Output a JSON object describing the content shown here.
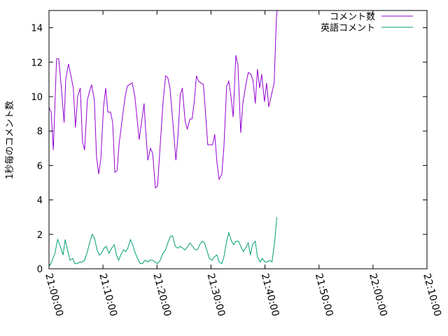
{
  "chart_data": {
    "type": "line",
    "title": "",
    "xlabel": "",
    "ylabel": "1秒毎のコメント数",
    "xlim_minutes": [
      0,
      70
    ],
    "ylim": [
      0,
      15
    ],
    "x_ticks": [
      {
        "minute": 0,
        "label": "21:00:00"
      },
      {
        "minute": 10,
        "label": "21:10:00"
      },
      {
        "minute": 20,
        "label": "21:20:00"
      },
      {
        "minute": 30,
        "label": "21:30:00"
      },
      {
        "minute": 40,
        "label": "21:40:00"
      },
      {
        "minute": 50,
        "label": "21:50:00"
      },
      {
        "minute": 60,
        "label": "22:00:00"
      },
      {
        "minute": 70,
        "label": "22:10:00"
      }
    ],
    "y_ticks": [
      {
        "value": 0,
        "label": "0"
      },
      {
        "value": 2,
        "label": "2"
      },
      {
        "value": 4,
        "label": "4"
      },
      {
        "value": 6,
        "label": "6"
      },
      {
        "value": 8,
        "label": "8"
      },
      {
        "value": 10,
        "label": "10"
      },
      {
        "value": 12,
        "label": "12"
      },
      {
        "value": 14,
        "label": "14"
      }
    ],
    "grid": false,
    "legend_position": "top-right",
    "series": [
      {
        "name": "コメント数",
        "color": "#9400d3",
        "points": [
          [
            -1.1,
            6.4
          ],
          [
            -0.8,
            10.3
          ],
          [
            -0.2,
            9.5
          ],
          [
            0.4,
            9.1
          ],
          [
            0.8,
            6.9
          ],
          [
            1.4,
            12.2
          ],
          [
            1.8,
            12.2
          ],
          [
            2.3,
            10.5
          ],
          [
            2.8,
            8.5
          ],
          [
            3.1,
            11
          ],
          [
            3.6,
            11.9
          ],
          [
            4,
            11.3
          ],
          [
            4.5,
            10.5
          ],
          [
            4.9,
            8.2
          ],
          [
            5.3,
            10
          ],
          [
            5.8,
            10.5
          ],
          [
            6.2,
            7.4
          ],
          [
            6.6,
            6.9
          ],
          [
            7.1,
            9.8
          ],
          [
            7.5,
            10.3
          ],
          [
            7.9,
            10.7
          ],
          [
            8.4,
            9.8
          ],
          [
            8.8,
            6.5
          ],
          [
            9.2,
            5.5
          ],
          [
            9.6,
            6.4
          ],
          [
            10.1,
            9.4
          ],
          [
            10.5,
            10.5
          ],
          [
            10.9,
            9.1
          ],
          [
            11.4,
            9.1
          ],
          [
            11.8,
            8.5
          ],
          [
            12.2,
            5.6
          ],
          [
            12.6,
            5.7
          ],
          [
            13,
            7.3
          ],
          [
            13.6,
            8.8
          ],
          [
            14.1,
            10
          ],
          [
            14.5,
            10.6
          ],
          [
            15.4,
            10.8
          ],
          [
            15.9,
            10
          ],
          [
            16.7,
            7.5
          ],
          [
            17.1,
            8.4
          ],
          [
            17.6,
            9.6
          ],
          [
            17.9,
            8
          ],
          [
            18.3,
            6.3
          ],
          [
            18.8,
            7
          ],
          [
            19.2,
            6.7
          ],
          [
            19.7,
            4.7
          ],
          [
            20.1,
            4.8
          ],
          [
            20.6,
            7.2
          ],
          [
            21.1,
            9.6
          ],
          [
            21.6,
            11.2
          ],
          [
            22,
            11.1
          ],
          [
            22.4,
            10.5
          ],
          [
            23,
            8.3
          ],
          [
            23.5,
            6.3
          ],
          [
            23.9,
            7.8
          ],
          [
            24.3,
            10.1
          ],
          [
            24.7,
            10.5
          ],
          [
            25.2,
            8.6
          ],
          [
            25.6,
            8.1
          ],
          [
            26.1,
            8.7
          ],
          [
            26.5,
            8.7
          ],
          [
            26.9,
            9.7
          ],
          [
            27.3,
            11.2
          ],
          [
            27.7,
            10.9
          ],
          [
            28.1,
            10.8
          ],
          [
            28.6,
            10.7
          ],
          [
            29,
            9
          ],
          [
            29.4,
            7.2
          ],
          [
            30.3,
            7.2
          ],
          [
            30.7,
            7.8
          ],
          [
            31.1,
            6.2
          ],
          [
            31.5,
            5.2
          ],
          [
            32,
            5.5
          ],
          [
            32.4,
            7.1
          ],
          [
            32.9,
            10.6
          ],
          [
            33.3,
            10.9
          ],
          [
            33.7,
            10
          ],
          [
            34.1,
            8.8
          ],
          [
            34.6,
            12.4
          ],
          [
            35,
            11.8
          ],
          [
            35.5,
            7.9
          ],
          [
            35.9,
            9.6
          ],
          [
            36.4,
            10.6
          ],
          [
            36.9,
            11.4
          ],
          [
            37.4,
            11.3
          ],
          [
            37.8,
            10.9
          ],
          [
            38.2,
            9.6
          ],
          [
            38.6,
            11.6
          ],
          [
            39,
            10.5
          ],
          [
            39.4,
            11.3
          ],
          [
            39.9,
            9.7
          ],
          [
            40.3,
            10.8
          ],
          [
            40.7,
            9.4
          ],
          [
            41.2,
            10.1
          ],
          [
            41.7,
            10.8
          ],
          [
            42.1,
            14.5
          ],
          [
            42.4,
            15.5
          ]
        ]
      },
      {
        "name": "英語コメント",
        "color": "#009e73",
        "points": [
          [
            -1.1,
            1.0
          ],
          [
            -0.7,
            0.2
          ],
          [
            -0.3,
            0.4
          ],
          [
            0.2,
            0.2
          ],
          [
            0.6,
            0.5
          ],
          [
            1.1,
            0.9
          ],
          [
            1.6,
            1.7
          ],
          [
            2.1,
            1.3
          ],
          [
            2.6,
            0.8
          ],
          [
            3,
            1.7
          ],
          [
            3.5,
            1.0
          ],
          [
            3.9,
            0.5
          ],
          [
            4.4,
            0.6
          ],
          [
            4.8,
            0.3
          ],
          [
            5.2,
            0.3
          ],
          [
            5.7,
            0.4
          ],
          [
            6.2,
            0.4
          ],
          [
            6.6,
            0.5
          ],
          [
            7.1,
            1.0
          ],
          [
            7.6,
            1.6
          ],
          [
            8,
            2.0
          ],
          [
            8.4,
            1.8
          ],
          [
            8.9,
            1.1
          ],
          [
            9.3,
            0.8
          ],
          [
            9.7,
            0.9
          ],
          [
            10.2,
            1.2
          ],
          [
            10.6,
            1.3
          ],
          [
            11.1,
            0.9
          ],
          [
            11.6,
            1.2
          ],
          [
            12.1,
            1.4
          ],
          [
            12.5,
            0.8
          ],
          [
            12.9,
            0.5
          ],
          [
            13.3,
            0.8
          ],
          [
            13.8,
            1.1
          ],
          [
            14.2,
            1.0
          ],
          [
            14.6,
            1.2
          ],
          [
            15.1,
            1.7
          ],
          [
            15.6,
            1.3
          ],
          [
            16,
            0.9
          ],
          [
            16.4,
            0.6
          ],
          [
            16.9,
            0.3
          ],
          [
            17.3,
            0.3
          ],
          [
            17.8,
            0.5
          ],
          [
            18.3,
            0.4
          ],
          [
            18.7,
            0.5
          ],
          [
            19.2,
            0.5
          ],
          [
            19.6,
            0.4
          ],
          [
            20.1,
            0.3
          ],
          [
            20.6,
            0.5
          ],
          [
            21.1,
            0.9
          ],
          [
            21.6,
            1.1
          ],
          [
            22,
            1.5
          ],
          [
            22.5,
            1.9
          ],
          [
            22.9,
            1.9
          ],
          [
            23.4,
            1.3
          ],
          [
            23.9,
            1.2
          ],
          [
            24.3,
            1.3
          ],
          [
            24.8,
            1.2
          ],
          [
            25.2,
            1.1
          ],
          [
            25.7,
            1.3
          ],
          [
            26.1,
            1.5
          ],
          [
            26.6,
            1.3
          ],
          [
            27.1,
            1.1
          ],
          [
            27.5,
            1.1
          ],
          [
            27.9,
            1.4
          ],
          [
            28.4,
            1.6
          ],
          [
            28.8,
            1.5
          ],
          [
            29.2,
            1.1
          ],
          [
            29.7,
            0.6
          ],
          [
            30.2,
            0.5
          ],
          [
            30.6,
            0.7
          ],
          [
            31.1,
            0.8
          ],
          [
            31.5,
            0.4
          ],
          [
            32,
            0.3
          ],
          [
            32.4,
            0.7
          ],
          [
            32.9,
            1.6
          ],
          [
            33.3,
            2.1
          ],
          [
            33.8,
            1.6
          ],
          [
            34.2,
            1.4
          ],
          [
            34.6,
            1.6
          ],
          [
            35.1,
            1.6
          ],
          [
            35.5,
            1.3
          ],
          [
            36,
            1.0
          ],
          [
            36.4,
            1.2
          ],
          [
            36.9,
            1.5
          ],
          [
            37.3,
            0.8
          ],
          [
            37.7,
            1.4
          ],
          [
            38.2,
            1.6
          ],
          [
            38.6,
            0.7
          ],
          [
            39.1,
            0.4
          ],
          [
            39.5,
            0.6
          ],
          [
            40,
            0.4
          ],
          [
            40.4,
            0.4
          ],
          [
            40.9,
            0.5
          ],
          [
            41.3,
            0.4
          ],
          [
            41.8,
            1.6
          ],
          [
            42.2,
            3.0
          ]
        ]
      }
    ]
  }
}
